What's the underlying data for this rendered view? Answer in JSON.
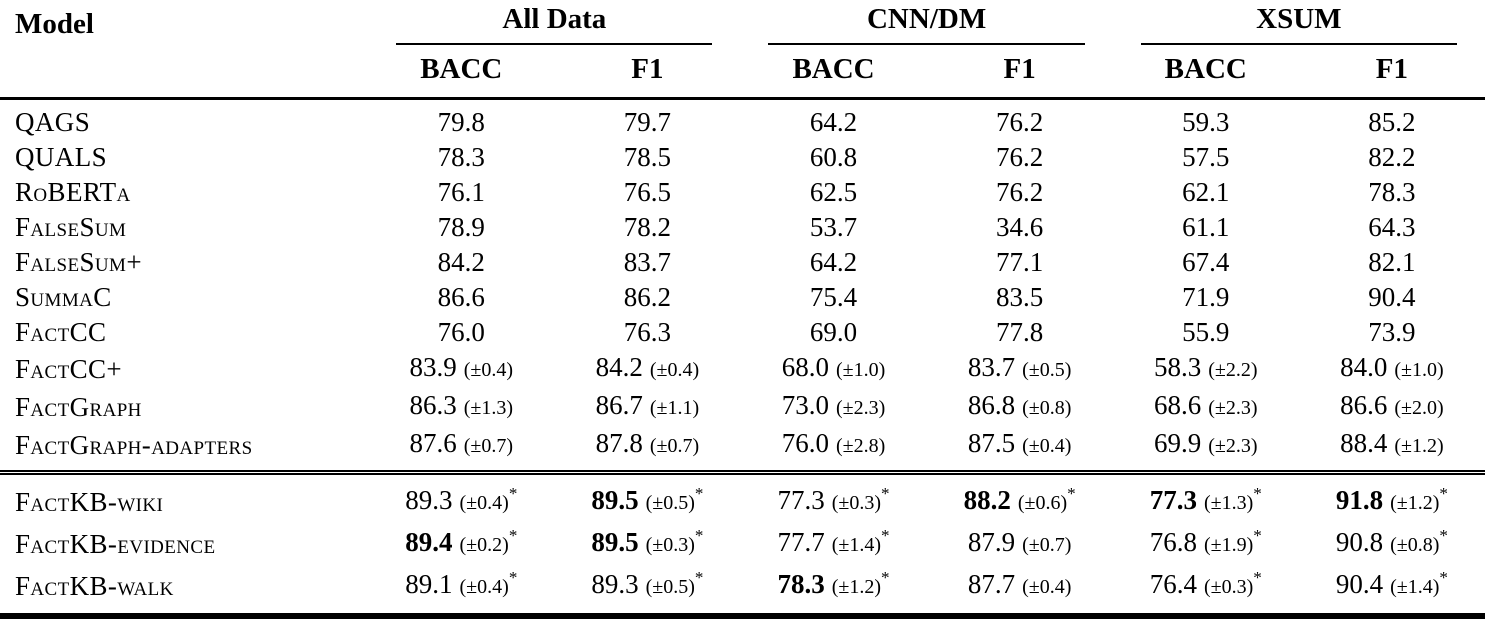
{
  "table": {
    "star_symbol": "*",
    "header": {
      "model_label": "Model",
      "groups": [
        {
          "label": "All Data"
        },
        {
          "label": "CNN/DM"
        },
        {
          "label": "XSUM"
        }
      ],
      "subcolumns": [
        "BACC",
        "F1",
        "BACC",
        "F1",
        "BACC",
        "F1"
      ]
    },
    "sections": [
      {
        "name": "baselines",
        "rows": [
          {
            "model": "QAGS",
            "cells": [
              {
                "v": "79.8"
              },
              {
                "v": "79.7"
              },
              {
                "v": "64.2"
              },
              {
                "v": "76.2"
              },
              {
                "v": "59.3"
              },
              {
                "v": "85.2"
              }
            ]
          },
          {
            "model": "QUALS",
            "cells": [
              {
                "v": "78.3"
              },
              {
                "v": "78.5"
              },
              {
                "v": "60.8"
              },
              {
                "v": "76.2"
              },
              {
                "v": "57.5"
              },
              {
                "v": "82.2"
              }
            ]
          },
          {
            "model": "RoBERTa",
            "cells": [
              {
                "v": "76.1"
              },
              {
                "v": "76.5"
              },
              {
                "v": "62.5"
              },
              {
                "v": "76.2"
              },
              {
                "v": "62.1"
              },
              {
                "v": "78.3"
              }
            ]
          },
          {
            "model": "FalseSum",
            "cells": [
              {
                "v": "78.9"
              },
              {
                "v": "78.2"
              },
              {
                "v": "53.7"
              },
              {
                "v": "34.6"
              },
              {
                "v": "61.1"
              },
              {
                "v": "64.3"
              }
            ]
          },
          {
            "model": "FalseSum+",
            "cells": [
              {
                "v": "84.2"
              },
              {
                "v": "83.7"
              },
              {
                "v": "64.2"
              },
              {
                "v": "77.1"
              },
              {
                "v": "67.4"
              },
              {
                "v": "82.1"
              }
            ]
          },
          {
            "model": "SummaC",
            "cells": [
              {
                "v": "86.6"
              },
              {
                "v": "86.2"
              },
              {
                "v": "75.4"
              },
              {
                "v": "83.5"
              },
              {
                "v": "71.9"
              },
              {
                "v": "90.4"
              }
            ]
          },
          {
            "model": "FactCC",
            "cells": [
              {
                "v": "76.0"
              },
              {
                "v": "76.3"
              },
              {
                "v": "69.0"
              },
              {
                "v": "77.8"
              },
              {
                "v": "55.9"
              },
              {
                "v": "73.9"
              }
            ]
          },
          {
            "model": "FactCC+",
            "cells": [
              {
                "v": "83.9",
                "pm": "(±0.4)"
              },
              {
                "v": "84.2",
                "pm": "(±0.4)"
              },
              {
                "v": "68.0",
                "pm": "(±1.0)"
              },
              {
                "v": "83.7",
                "pm": "(±0.5)"
              },
              {
                "v": "58.3",
                "pm": "(±2.2)"
              },
              {
                "v": "84.0",
                "pm": "(±1.0)"
              }
            ]
          },
          {
            "model": "FactGraph",
            "cells": [
              {
                "v": "86.3",
                "pm": "(±1.3)"
              },
              {
                "v": "86.7",
                "pm": "(±1.1)"
              },
              {
                "v": "73.0",
                "pm": "(±2.3)"
              },
              {
                "v": "86.8",
                "pm": "(±0.8)"
              },
              {
                "v": "68.6",
                "pm": "(±2.3)"
              },
              {
                "v": "86.6",
                "pm": "(±2.0)"
              }
            ]
          },
          {
            "model": "FactGraph-adapters",
            "cells": [
              {
                "v": "87.6",
                "pm": "(±0.7)"
              },
              {
                "v": "87.8",
                "pm": "(±0.7)"
              },
              {
                "v": "76.0",
                "pm": "(±2.8)"
              },
              {
                "v": "87.5",
                "pm": "(±0.4)"
              },
              {
                "v": "69.9",
                "pm": "(±2.3)"
              },
              {
                "v": "88.4",
                "pm": "(±1.2)"
              }
            ]
          }
        ]
      },
      {
        "name": "factkb",
        "rows": [
          {
            "model": "FactKB-wiki",
            "cells": [
              {
                "v": "89.3",
                "pm": "(±0.4)",
                "star": true
              },
              {
                "v": "89.5",
                "pm": "(±0.5)",
                "star": true,
                "bold": true
              },
              {
                "v": "77.3",
                "pm": "(±0.3)",
                "star": true
              },
              {
                "v": "88.2",
                "pm": "(±0.6)",
                "star": true,
                "bold": true
              },
              {
                "v": "77.3",
                "pm": "(±1.3)",
                "star": true,
                "bold": true
              },
              {
                "v": "91.8",
                "pm": "(±1.2)",
                "star": true,
                "bold": true
              }
            ]
          },
          {
            "model": "FactKB-evidence",
            "cells": [
              {
                "v": "89.4",
                "pm": "(±0.2)",
                "star": true,
                "bold": true
              },
              {
                "v": "89.5",
                "pm": "(±0.3)",
                "star": true,
                "bold": true
              },
              {
                "v": "77.7",
                "pm": "(±1.4)",
                "star": true
              },
              {
                "v": "87.9",
                "pm": "(±0.7)"
              },
              {
                "v": "76.8",
                "pm": "(±1.9)",
                "star": true
              },
              {
                "v": "90.8",
                "pm": "(±0.8)",
                "star": true
              }
            ]
          },
          {
            "model": "FactKB-walk",
            "cells": [
              {
                "v": "89.1",
                "pm": "(±0.4)",
                "star": true
              },
              {
                "v": "89.3",
                "pm": "(±0.5)",
                "star": true
              },
              {
                "v": "78.3",
                "pm": "(±1.2)",
                "star": true,
                "bold": true
              },
              {
                "v": "87.7",
                "pm": "(±0.4)"
              },
              {
                "v": "76.4",
                "pm": "(±0.3)",
                "star": true
              },
              {
                "v": "90.4",
                "pm": "(±1.4)",
                "star": true
              }
            ]
          }
        ]
      }
    ]
  }
}
